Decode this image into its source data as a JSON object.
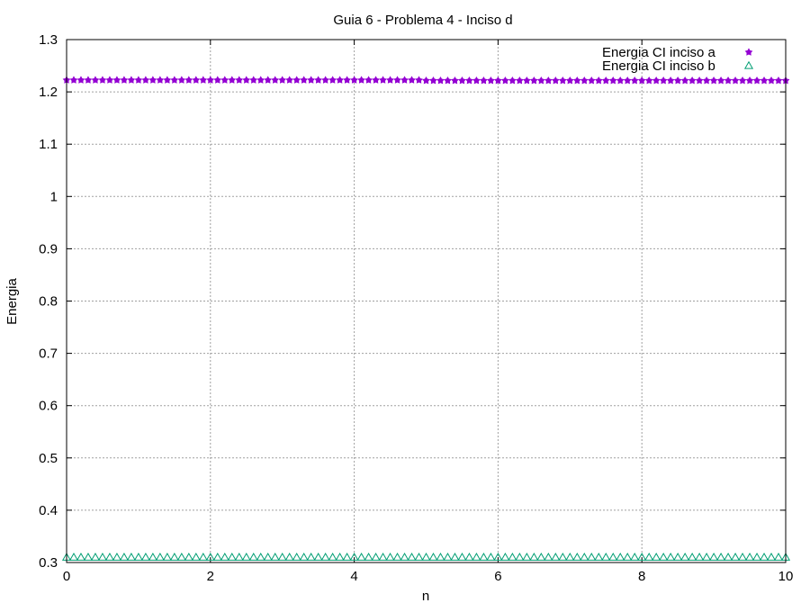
{
  "chart_data": {
    "type": "scatter",
    "title": "Guia 6 - Problema 4 - Inciso d",
    "xlabel": "n",
    "ylabel": "Energia",
    "xlim": [
      0,
      10
    ],
    "ylim": [
      0.3,
      1.3
    ],
    "x_ticks": [
      "0",
      "2",
      "4",
      "6",
      "8",
      "10"
    ],
    "y_ticks": [
      "0.3",
      "0.4",
      "0.5",
      "0.6",
      "0.7",
      "0.8",
      "0.9",
      "1",
      "1.1",
      "1.2",
      "1.3"
    ],
    "grid": true,
    "legend_position": "top-right",
    "series": [
      {
        "name": "Energia CI inciso a",
        "marker": "star",
        "color": "#9400d3",
        "x_start": 0,
        "x_end": 10,
        "x_step": 0.1,
        "segments": [
          {
            "from": 0,
            "to": 5,
            "value": 1.2225
          },
          {
            "from": 5,
            "to": 10,
            "value": 1.2215
          }
        ]
      },
      {
        "name": "Energia CI inciso b",
        "marker": "triangle-open",
        "color": "#009e73",
        "x_start": 0,
        "x_end": 10,
        "x_step": 0.1,
        "segments": [
          {
            "from": 0,
            "to": 10,
            "value": 0.31
          }
        ]
      }
    ]
  }
}
